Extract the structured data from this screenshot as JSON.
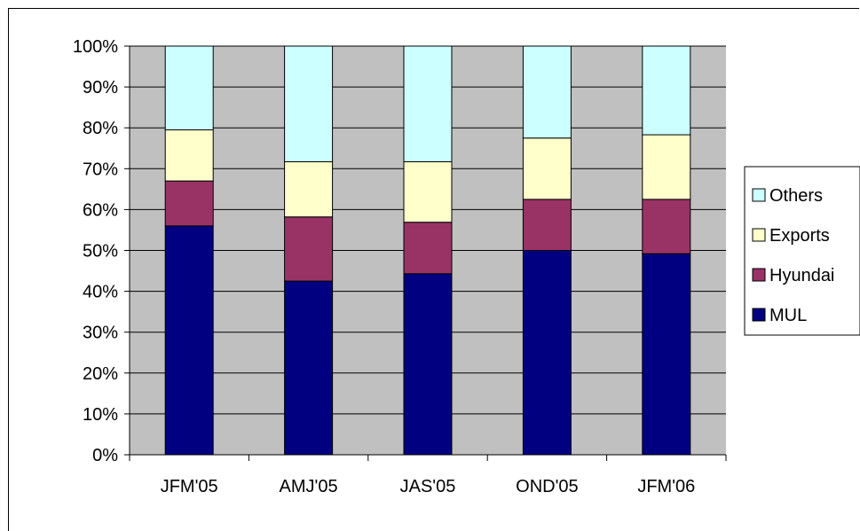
{
  "chart_data": {
    "type": "bar",
    "stacked": true,
    "percent": true,
    "categories": [
      "JFM'05",
      "AMJ'05",
      "JAS'05",
      "OND'05",
      "JFM'06"
    ],
    "series": [
      {
        "name": "MUL",
        "color": "#000080",
        "values": [
          56,
          42.5,
          44.3,
          50,
          49.2
        ]
      },
      {
        "name": "Hyundai",
        "color": "#993366",
        "values": [
          11,
          15.7,
          12.6,
          12.5,
          13.3
        ]
      },
      {
        "name": "Exports",
        "color": "#FFFFCC",
        "values": [
          12.5,
          13.5,
          14.8,
          15,
          15.8
        ]
      },
      {
        "name": "Others",
        "color": "#CCFFFF",
        "values": [
          20.5,
          28.3,
          28.3,
          22.5,
          21.7
        ]
      }
    ],
    "ylim": [
      0,
      100
    ],
    "yticks": [
      "0%",
      "10%",
      "20%",
      "30%",
      "40%",
      "50%",
      "60%",
      "70%",
      "80%",
      "90%",
      "100%"
    ],
    "legend_position": "right",
    "legend_order": [
      "Others",
      "Exports",
      "Hyundai",
      "MUL"
    ],
    "grid": true,
    "plot_background": "#C0C0C0"
  }
}
